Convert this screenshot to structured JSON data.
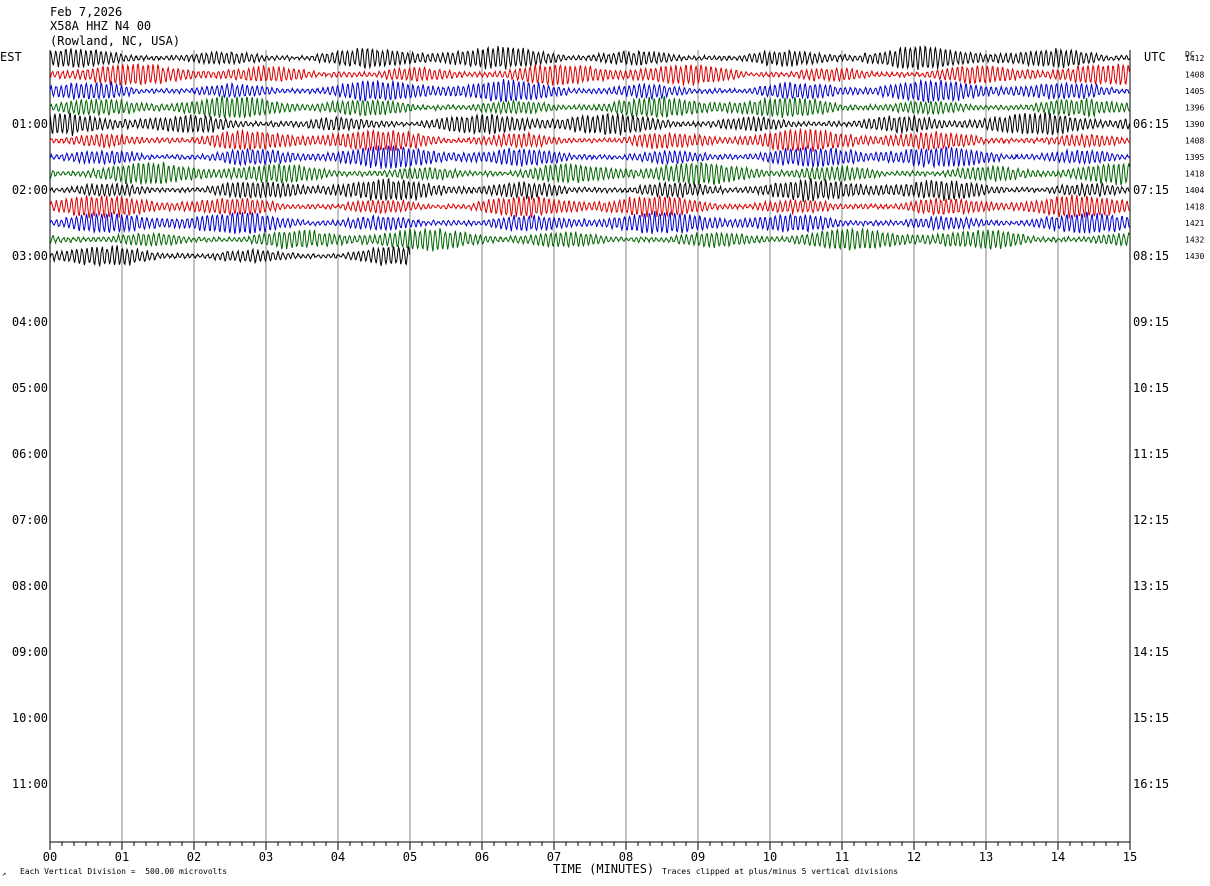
{
  "header": {
    "date": "Feb 7,2026",
    "station": "X58A HHZ N4 00",
    "location": "(Rowland, NC, USA)"
  },
  "axes": {
    "left_label": "EST",
    "right_label": "UTC",
    "dc_label": "DC",
    "x_title": "TIME (MINUTES)",
    "footer_left": "Each Vertical Division =  500.00 microvolts",
    "footer_right": "Traces clipped at plus/minus 5 vertical divisions",
    "corner_mark": "↗"
  },
  "chart_data": {
    "type": "line",
    "title": "X58A HHZ N4 00",
    "x_title": "TIME (MINUTES)",
    "x_ticks": [
      "00",
      "01",
      "02",
      "03",
      "04",
      "05",
      "06",
      "07",
      "08",
      "09",
      "10",
      "11",
      "12",
      "13",
      "14",
      "15"
    ],
    "x_range": [
      0,
      15
    ],
    "left_hour_labels": [
      "01:00",
      "02:00",
      "03:00",
      "04:00",
      "05:00",
      "06:00",
      "07:00",
      "08:00",
      "09:00",
      "10:00",
      "11:00"
    ],
    "right_hour_labels": [
      "06:15",
      "07:15",
      "08:15",
      "09:15",
      "10:15",
      "11:15",
      "12:15",
      "13:15",
      "14:15",
      "15:15",
      "16:15"
    ],
    "trace_colors": [
      "#000000",
      "#dd0000",
      "#0000cc",
      "#006600"
    ],
    "traces": [
      {
        "line": 0,
        "start_minutes": 0,
        "end_minutes": 15,
        "dc": "1412"
      },
      {
        "line": 1,
        "start_minutes": 0,
        "end_minutes": 15,
        "dc": "1408"
      },
      {
        "line": 2,
        "start_minutes": 0,
        "end_minutes": 15,
        "dc": "1405"
      },
      {
        "line": 3,
        "start_minutes": 0,
        "end_minutes": 15,
        "dc": "1396"
      },
      {
        "line": 4,
        "start_minutes": 0,
        "end_minutes": 15,
        "dc": "1390"
      },
      {
        "line": 5,
        "start_minutes": 0,
        "end_minutes": 15,
        "dc": "1408"
      },
      {
        "line": 6,
        "start_minutes": 0,
        "end_minutes": 15,
        "dc": "1395"
      },
      {
        "line": 7,
        "start_minutes": 0,
        "end_minutes": 15,
        "dc": "1418"
      },
      {
        "line": 8,
        "start_minutes": 0,
        "end_minutes": 15,
        "dc": "1404"
      },
      {
        "line": 9,
        "start_minutes": 0,
        "end_minutes": 15,
        "dc": "1418"
      },
      {
        "line": 10,
        "start_minutes": 0,
        "end_minutes": 15,
        "dc": "1421"
      },
      {
        "line": 11,
        "start_minutes": 0,
        "end_minutes": 15,
        "dc": "1432"
      },
      {
        "line": 12,
        "start_minutes": 0,
        "end_minutes": 5,
        "dc": "1430"
      }
    ],
    "vertical_division_microvolts": 500,
    "clip_divisions": 5,
    "grid": true
  }
}
